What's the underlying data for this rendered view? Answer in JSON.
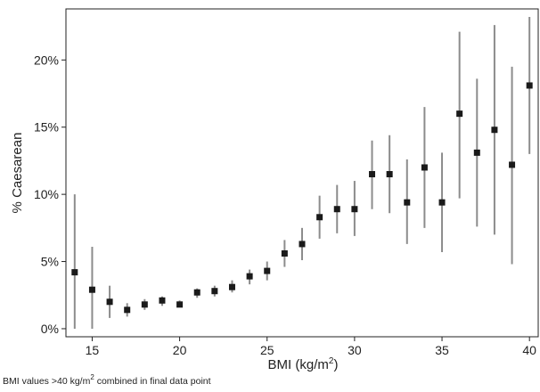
{
  "chart_data": {
    "type": "scatter",
    "variant": "point-with-error-bars",
    "title": "",
    "xlabel": "BMI (kg/m",
    "xlabel_superscript": "2",
    "xlabel_suffix": ")",
    "ylabel": "% Caesarean",
    "xlim": [
      13.5,
      40.5
    ],
    "ylim": [
      -0.6,
      23.8
    ],
    "x_ticks": [
      15,
      20,
      25,
      30,
      35,
      40
    ],
    "x_tick_labels": [
      "15",
      "20",
      "25",
      "30",
      "35",
      "40"
    ],
    "y_ticks": [
      0,
      5,
      10,
      15,
      20
    ],
    "y_tick_labels": [
      "0%",
      "5%",
      "10%",
      "15%",
      "20%"
    ],
    "grid": false,
    "marker_color": "#1a1a1a",
    "errorbar_color": "#8c8c8c",
    "series": [
      {
        "points": [
          {
            "x": 14,
            "y": 4.2,
            "low": 0.0,
            "high": 10.0
          },
          {
            "x": 15,
            "y": 2.9,
            "low": 0.0,
            "high": 6.1
          },
          {
            "x": 16,
            "y": 2.0,
            "low": 0.8,
            "high": 3.2
          },
          {
            "x": 17,
            "y": 1.4,
            "low": 0.9,
            "high": 1.9
          },
          {
            "x": 18,
            "y": 1.8,
            "low": 1.4,
            "high": 2.2
          },
          {
            "x": 19,
            "y": 2.1,
            "low": 1.7,
            "high": 2.4
          },
          {
            "x": 20,
            "y": 1.8,
            "low": 1.6,
            "high": 2.1
          },
          {
            "x": 21,
            "y": 2.7,
            "low": 2.3,
            "high": 3.0
          },
          {
            "x": 22,
            "y": 2.8,
            "low": 2.4,
            "high": 3.2
          },
          {
            "x": 23,
            "y": 3.1,
            "low": 2.7,
            "high": 3.6
          },
          {
            "x": 24,
            "y": 3.9,
            "low": 3.3,
            "high": 4.4
          },
          {
            "x": 25,
            "y": 4.3,
            "low": 3.6,
            "high": 5.0
          },
          {
            "x": 26,
            "y": 5.6,
            "low": 4.6,
            "high": 6.6
          },
          {
            "x": 27,
            "y": 6.3,
            "low": 5.1,
            "high": 7.5
          },
          {
            "x": 28,
            "y": 8.3,
            "low": 6.7,
            "high": 9.9
          },
          {
            "x": 29,
            "y": 8.9,
            "low": 7.1,
            "high": 10.7
          },
          {
            "x": 30,
            "y": 8.9,
            "low": 6.9,
            "high": 11.0
          },
          {
            "x": 31,
            "y": 11.5,
            "low": 8.9,
            "high": 14.0
          },
          {
            "x": 32,
            "y": 11.5,
            "low": 8.6,
            "high": 14.4
          },
          {
            "x": 33,
            "y": 9.4,
            "low": 6.3,
            "high": 12.6
          },
          {
            "x": 34,
            "y": 12.0,
            "low": 7.5,
            "high": 16.5
          },
          {
            "x": 35,
            "y": 9.4,
            "low": 5.7,
            "high": 13.1
          },
          {
            "x": 36,
            "y": 16.0,
            "low": 9.7,
            "high": 22.1
          },
          {
            "x": 37,
            "y": 13.1,
            "low": 7.6,
            "high": 18.6
          },
          {
            "x": 38,
            "y": 14.8,
            "low": 7.0,
            "high": 22.6
          },
          {
            "x": 39,
            "y": 12.2,
            "low": 4.8,
            "high": 19.5
          },
          {
            "x": 40,
            "y": 18.1,
            "low": 13.0,
            "high": 23.2
          }
        ]
      }
    ]
  },
  "footnote": {
    "prefix": "BMI values >40 kg/m",
    "superscript": "2",
    "suffix": " combined in final data point"
  }
}
